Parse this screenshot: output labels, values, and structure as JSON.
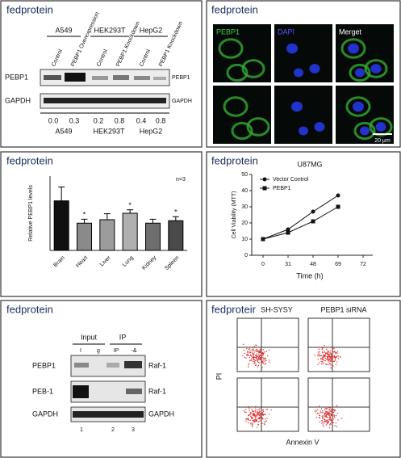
{
  "panel_labels": [
    "fedprotein",
    "fedprotein",
    "fedprotein",
    "fedprotein",
    "fedprotein",
    "fedproteir"
  ],
  "blot_panel": {
    "groups": [
      "A549",
      "HEK293T",
      "HepG2"
    ],
    "lanes": [
      "Control",
      "PEBP1 Overexpression",
      "Control",
      "PEBP1 Knockdown",
      "Control",
      "PEBP1 Knockdown"
    ],
    "row_labels": [
      "PEBP1",
      "GAPDH"
    ],
    "right_labels": [
      "PEBP1",
      "GAPDH"
    ],
    "quantification": [
      "0.0",
      "0.3",
      "0.2",
      "0.8",
      "0.4",
      "0.8"
    ],
    "bottom_groups": [
      "A549",
      "HEK293T",
      "HepG2"
    ]
  },
  "if_panel": {
    "channels": [
      "PEBP1",
      "DAPI",
      "Merget"
    ],
    "scale_bar": "20 μm"
  },
  "coip_panel": {
    "headers": [
      "Input",
      "IP"
    ],
    "lanes": [
      "I",
      "g",
      "IP",
      "-&"
    ],
    "row_labels": [
      "PEBP1",
      "PEB-1",
      "GAPDH"
    ],
    "right_labels": [
      "Raf-1",
      "Raf-1",
      "GAPDH"
    ],
    "lane_numbers": [
      "1",
      "2",
      "3"
    ]
  },
  "flow_panel": {
    "titles": [
      "SH-SYSY",
      "PEBP1 siRNA"
    ],
    "ylabel": "PI",
    "xlabel": "Annexin V"
  },
  "chart_data": [
    {
      "type": "bar",
      "ylabel": "Relative PEBP1 levels",
      "annotation": "n=3",
      "categories": [
        "Brain",
        "Heart",
        "Liver",
        "Lung",
        "Kidney",
        "Spleen"
      ],
      "values": [
        1.0,
        0.55,
        0.62,
        0.75,
        0.55,
        0.6
      ],
      "errors": [
        0.28,
        0.08,
        0.12,
        0.07,
        0.08,
        0.08
      ],
      "markers": [
        null,
        "*",
        null,
        "*",
        null,
        "*"
      ],
      "colors": [
        "#111111",
        "#8a8a8a",
        "#9c9c9c",
        "#b0b0b0",
        "#6e6e6e",
        "#4a4a4a"
      ],
      "ylim": [
        0,
        1.5
      ]
    },
    {
      "type": "line",
      "title": "U87MG",
      "xlabel": "Time (h)",
      "ylabel": "Cell Viability (MTT)",
      "categories": [
        "0",
        "31",
        "48",
        "69",
        "72"
      ],
      "series": [
        {
          "name": "Vector Control",
          "color": "#111111",
          "values": [
            10,
            16,
            27,
            37,
            null
          ]
        },
        {
          "name": "PEBP1",
          "color": "#111111",
          "values": [
            10,
            14,
            21,
            30,
            null
          ]
        }
      ],
      "ylim": [
        0,
        50
      ],
      "yticks": [
        0,
        10,
        20,
        30,
        40,
        50
      ]
    }
  ]
}
